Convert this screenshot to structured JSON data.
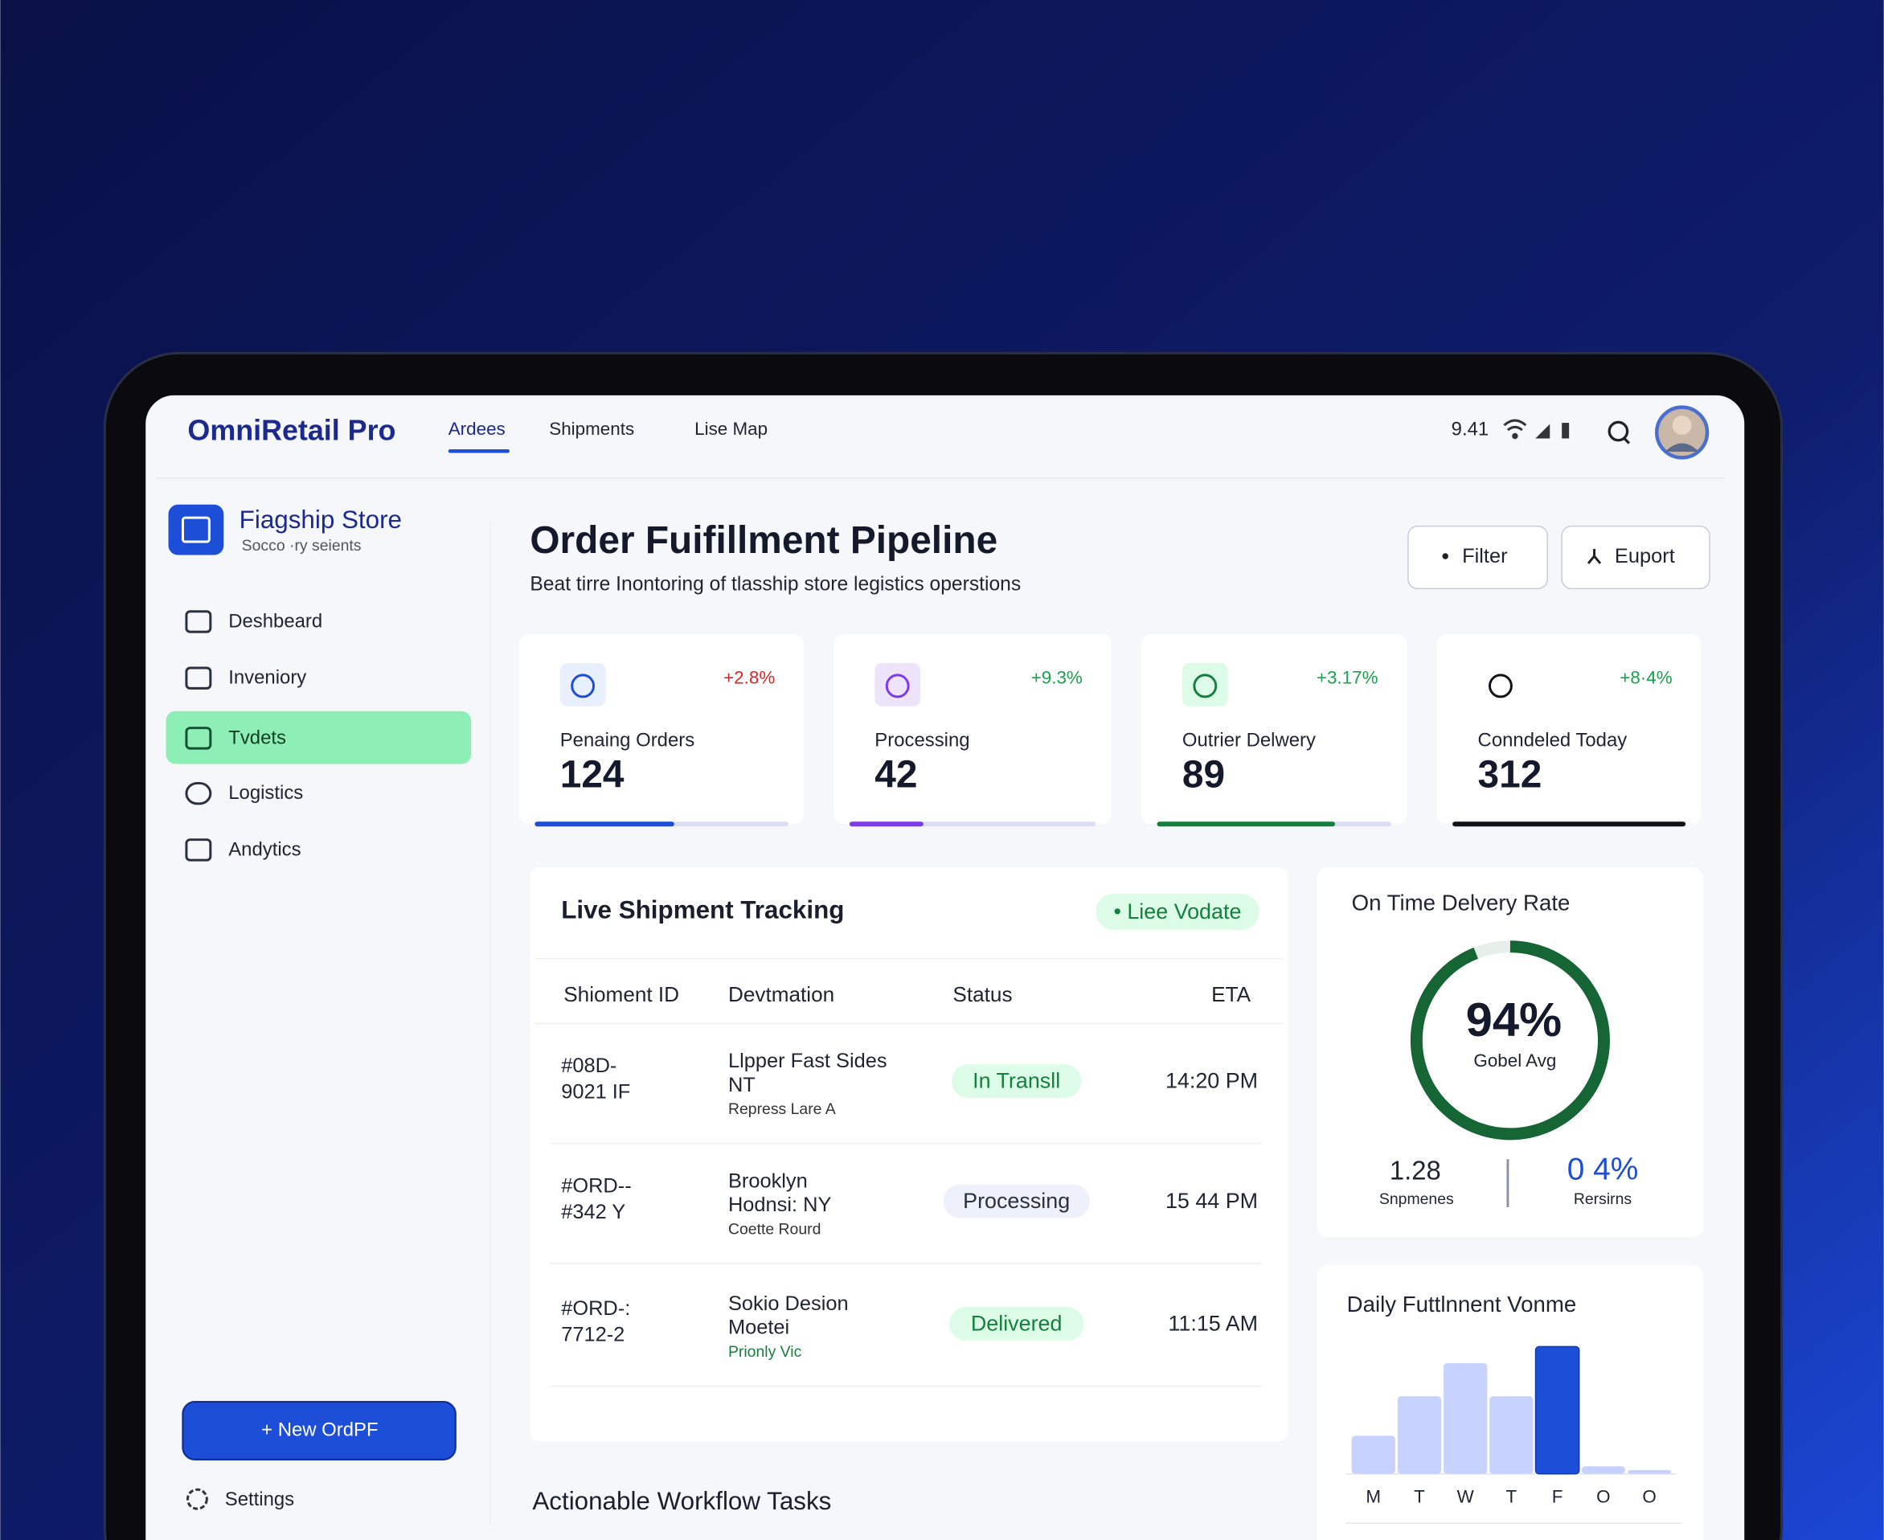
{
  "header": {
    "brand": "OmniRetail Pro",
    "nav": [
      "Ardees",
      "Shipments",
      "Lise Map"
    ],
    "time": "9.41"
  },
  "sidebar": {
    "store_name": "Fiagship Store",
    "store_sub": "Socco ·ry seients",
    "menu": [
      "Deshbeard",
      "Inveniory",
      "Tvdets",
      "Logistics",
      "Andytics"
    ],
    "new_button": "+ New OrdPF",
    "settings": "Settings"
  },
  "main": {
    "title": "Order Fuifillment Pipeline",
    "subtitle": "Beat tirre Inontoring of tlasship store legistics operstions",
    "buttons": [
      "Filter",
      "Euport"
    ],
    "kpis": [
      {
        "label": "Penaing Orders",
        "value": 124,
        "delta": "+2.8%",
        "progress": 55
      },
      {
        "label": "Processing",
        "value": 42,
        "delta": "+9.3%",
        "progress": 30
      },
      {
        "label": "Outrier Delwery",
        "value": 89,
        "delta": "+3.17%",
        "progress": 76
      },
      {
        "label": "Conndeled Today",
        "value": 312,
        "delta": "+8·4%",
        "progress": 100
      }
    ],
    "tracking": {
      "title": "Live Shipment Tracking",
      "badge": "• Liee Vodate",
      "columns": [
        "Shioment ID",
        "Devtmation",
        "Status",
        "ETA"
      ],
      "rows": [
        {
          "id": [
            "#08D-",
            "9021 IF"
          ],
          "destination": [
            "Llpper Fast Sides",
            "NT"
          ],
          "note": "Repress Lare A",
          "status": "In Transll",
          "eta": "14:20 PM"
        },
        {
          "id": [
            "#ORD--",
            "#342 Y"
          ],
          "destination": [
            "Brooklyn",
            "Hodnsi: NY"
          ],
          "note": "Coette Rourd",
          "status": "Processing",
          "eta": "15 44 PM"
        },
        {
          "id": [
            "#ORD-:",
            "7712-2"
          ],
          "destination": [
            "Sokio Desion",
            "Moetei"
          ],
          "note": "Prionly Vic",
          "status": "Delivered",
          "eta": "11:15 AM"
        }
      ]
    },
    "tasks_title": "Actionable Workflow Tasks"
  },
  "delivery_rate": {
    "title": "On Time Delvery Rate",
    "rate": {
      "value": 94,
      "label": "94%"
    },
    "rate_caption": "Gobel Avg",
    "stats": [
      {
        "value": "1.28",
        "label": "Snpmenes"
      },
      {
        "value": "0 4%",
        "label": "Rersirns"
      }
    ]
  },
  "volume_chart": {
    "type": "bar",
    "title": "Daily Futtlnnent Vonme",
    "categories": [
      "M",
      "T",
      "W",
      "T",
      "F",
      "O",
      "O"
    ],
    "values": [
      30,
      61,
      87,
      61,
      100,
      6,
      3
    ],
    "color": "#c7d2fe",
    "highlight_color": "#1d4ed8",
    "highlight_index": 4
  }
}
